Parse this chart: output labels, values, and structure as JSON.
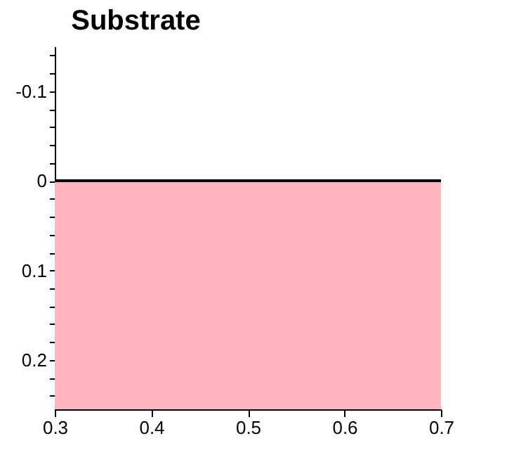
{
  "chart_data": {
    "type": "line",
    "title": "Substrate",
    "x": [
      0.3,
      0.7
    ],
    "series": [
      {
        "color": "#000000",
        "values": [
          0,
          0
        ]
      }
    ],
    "xlim": [
      0.3,
      0.7
    ],
    "xticks": [
      0.3,
      0.4,
      0.5,
      0.6,
      0.7
    ],
    "ylim": [
      0.255,
      -0.15
    ],
    "yticks": [
      {
        "value": -0.14,
        "label": null
      },
      {
        "value": -0.12,
        "label": null
      },
      {
        "value": -0.1,
        "label": "-0.1"
      },
      {
        "value": -0.08,
        "label": null
      },
      {
        "value": -0.06,
        "label": null
      },
      {
        "value": -0.04,
        "label": null
      },
      {
        "value": -0.02,
        "label": null
      },
      0,
      {
        "value": 0.02,
        "label": null
      },
      {
        "value": 0.04,
        "label": null
      },
      {
        "value": 0.06,
        "label": null
      },
      {
        "value": 0.08,
        "label": null
      },
      0.1,
      {
        "value": 0.12,
        "label": null
      },
      {
        "value": 0.14,
        "label": null
      },
      {
        "value": 0.16,
        "label": null
      },
      {
        "value": 0.18,
        "label": null
      },
      0.2,
      {
        "value": 0.22,
        "label": null
      },
      {
        "value": 0.24,
        "label": null
      }
    ],
    "bands": [
      {
        "axis": "y",
        "from": 0,
        "to": 0.255,
        "color": "#ffb6c1"
      }
    ]
  }
}
